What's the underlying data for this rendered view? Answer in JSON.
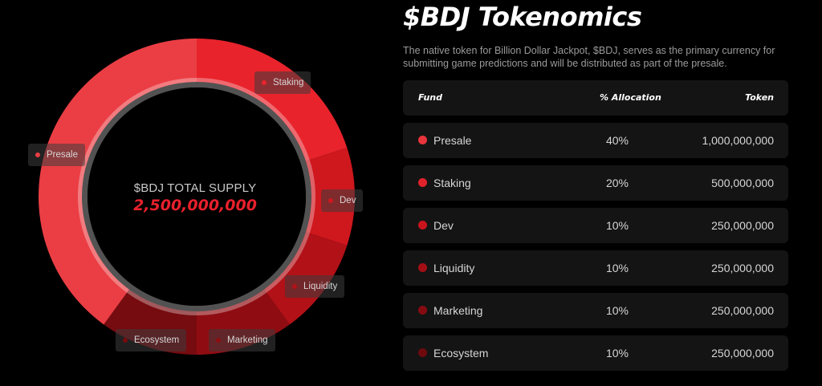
{
  "header": {
    "title": "$BDJ Tokenomics",
    "subtitle": "The native token for Billion Dollar Jackpot, $BDJ, serves as the primary currency for submitting game predictions and will be distributed as part of the presale."
  },
  "center": {
    "caption": "$BDJ TOTAL SUPPLY",
    "value": "2,500,000,000"
  },
  "table": {
    "headers": {
      "fund": "Fund",
      "allocation": "% Allocation",
      "token": "Token"
    },
    "rows": [
      {
        "fund": "Presale",
        "allocation": "40%",
        "token": "1,000,000,000",
        "color": "#e8343c"
      },
      {
        "fund": "Staking",
        "allocation": "20%",
        "token": "500,000,000",
        "color": "#e0222c"
      },
      {
        "fund": "Dev",
        "allocation": "10%",
        "token": "250,000,000",
        "color": "#c9141c"
      },
      {
        "fund": "Liquidity",
        "allocation": "10%",
        "token": "250,000,000",
        "color": "#a40f16"
      },
      {
        "fund": "Marketing",
        "allocation": "10%",
        "token": "250,000,000",
        "color": "#860b11"
      },
      {
        "fund": "Ecosystem",
        "allocation": "10%",
        "token": "250,000,000",
        "color": "#6e0a0e"
      }
    ]
  },
  "chart_data": {
    "type": "pie",
    "title": "",
    "categories": [
      "Staking",
      "Dev",
      "Liquidity",
      "Marketing",
      "Ecosystem",
      "Presale"
    ],
    "values": [
      20,
      10,
      10,
      10,
      10,
      40
    ],
    "colors": [
      "#e8232c",
      "#cf171e",
      "#b11117",
      "#8f0d12",
      "#760b10",
      "#ea3e44"
    ]
  }
}
